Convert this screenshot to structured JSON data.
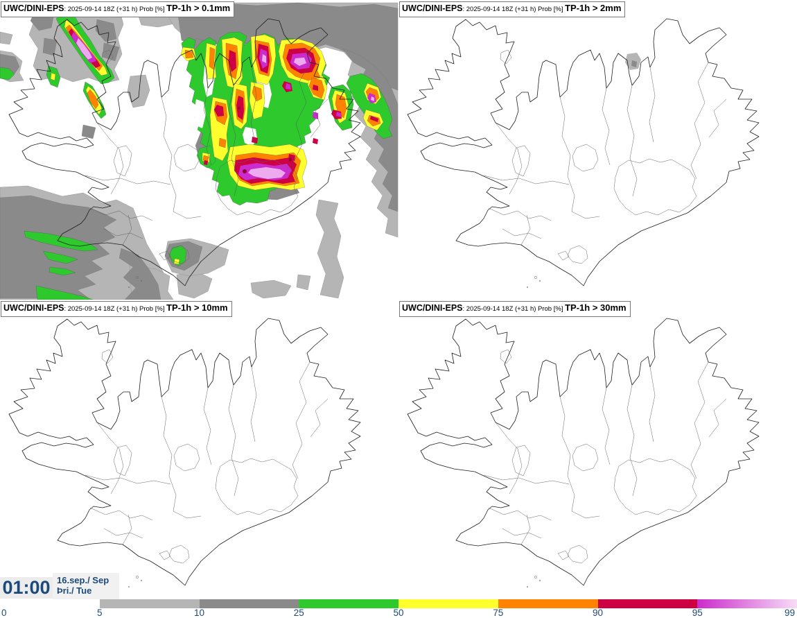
{
  "panels": [
    {
      "prefix": "UWC/DINI-EPS",
      "meta": ": 2025-09-14 18Z (+31 h) Prob [%] ",
      "threshold": "TP-1h > 0.1mm"
    },
    {
      "prefix": "UWC/DINI-EPS",
      "meta": ": 2025-09-14 18Z (+31 h) Prob [%] ",
      "threshold": "TP-1h > 2mm"
    },
    {
      "prefix": "UWC/DINI-EPS",
      "meta": ": 2025-09-14 18Z (+31 h) Prob [%] ",
      "threshold": "TP-1h > 10mm"
    },
    {
      "prefix": "UWC/DINI-EPS",
      "meta": ": 2025-09-14 18Z (+31 h) Prob [%] ",
      "threshold": "TP-1h > 30mm"
    }
  ],
  "clock": {
    "time": "01:00",
    "date": "16.sep./ Sep",
    "day": "Þri./ Tue"
  },
  "colorbar": {
    "ticks": [
      "0",
      "5",
      "10",
      "25",
      "50",
      "75",
      "90",
      "95",
      "99"
    ],
    "segment_colors": [
      "#ffffff",
      "#b5b5b5",
      "#8a8a8a",
      "#2dc92d",
      "#ffff2e",
      "#ff8300",
      "#cc0042",
      "gradient:#cb2ccb,#f7dcf7"
    ],
    "label_color": "#1b4a7a"
  }
}
